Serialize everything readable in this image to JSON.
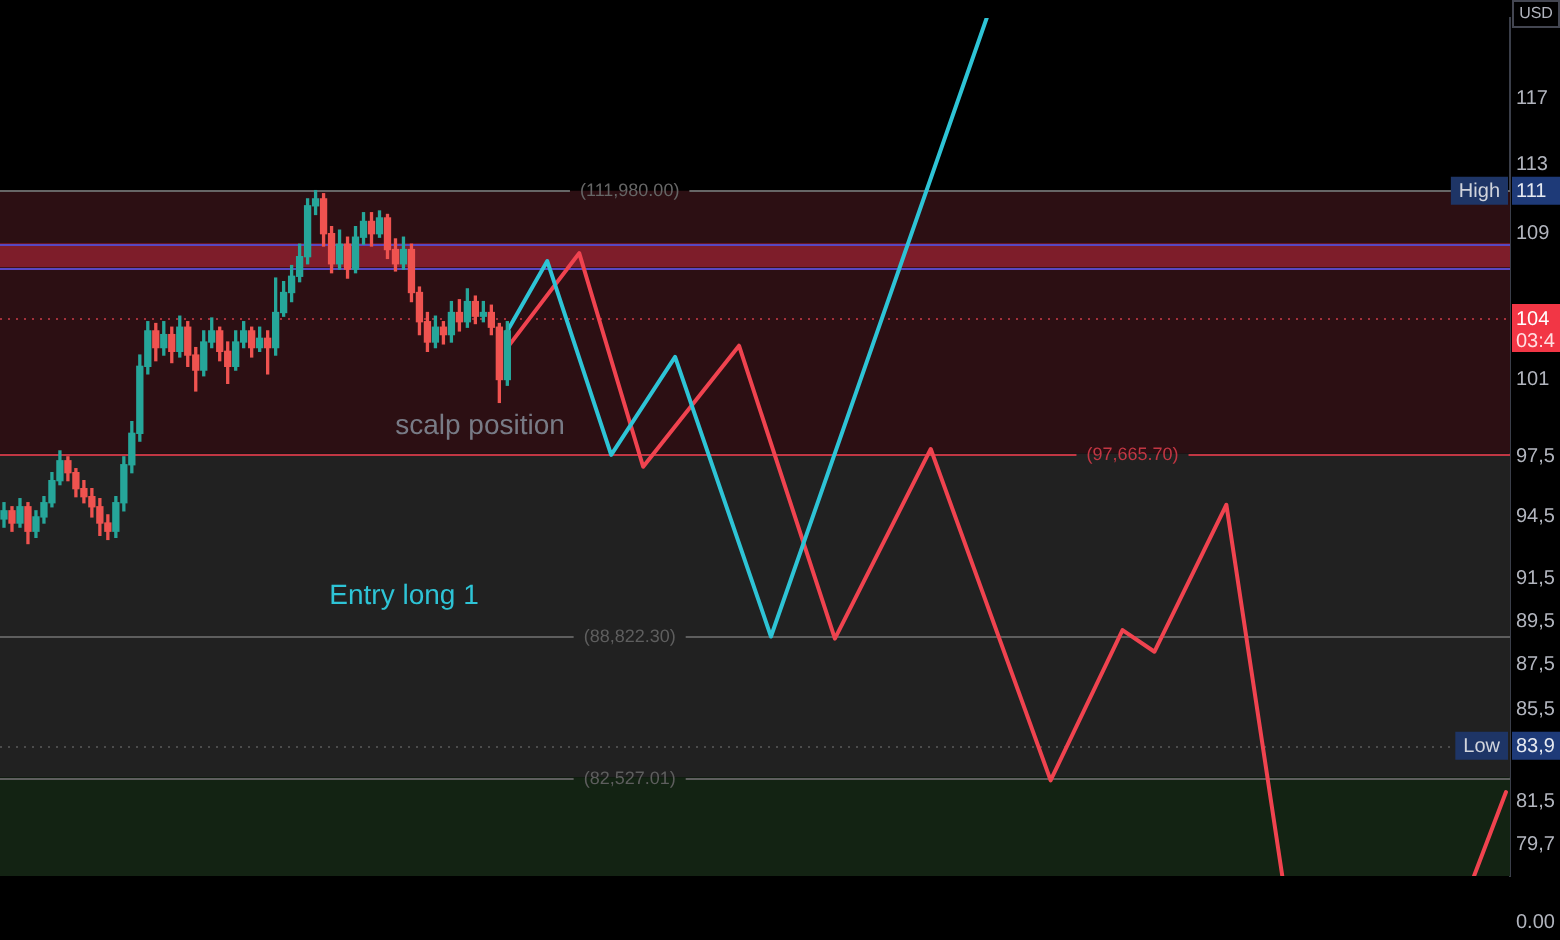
{
  "chart_data": {
    "type": "candlestick",
    "categories": [
      null,
      null,
      null,
      null,
      null,
      null,
      null,
      null,
      null,
      null,
      null,
      null,
      null,
      null,
      null,
      null,
      null,
      null,
      null,
      null,
      null,
      null,
      null,
      null,
      null,
      null,
      null,
      null,
      null,
      null,
      null,
      null,
      null,
      null,
      null,
      null,
      null,
      null,
      null,
      null,
      null,
      null,
      null,
      null,
      null,
      null,
      null,
      null,
      null,
      null,
      null,
      null,
      null,
      null,
      null,
      null,
      null,
      null,
      null,
      null,
      null,
      null,
      null,
      null,
      null,
      null,
      null,
      null,
      null,
      null,
      null,
      null,
      null,
      null,
      null,
      null,
      null,
      null,
      null,
      null,
      null,
      null,
      null,
      null,
      null,
      null,
      null,
      null,
      null,
      null,
      null,
      null,
      null,
      null,
      null,
      null,
      null,
      null,
      null,
      null,
      null,
      null,
      null,
      null,
      null,
      null,
      null,
      null,
      null,
      null,
      null,
      null,
      null,
      null,
      null,
      null,
      null,
      null,
      null,
      null,
      null,
      null,
      null,
      null,
      null,
      null,
      null,
      null,
      null,
      null,
      null,
      null,
      null,
      null,
      null,
      null,
      null,
      null,
      null,
      null,
      null,
      null,
      null,
      null,
      null,
      null,
      null,
      null,
      null,
      null,
      null,
      null,
      null,
      null,
      null,
      null,
      null,
      null,
      null,
      null,
      null,
      null,
      null,
      null,
      null,
      null,
      null,
      null,
      null,
      null,
      null,
      null,
      null,
      null,
      null,
      null,
      null,
      null,
      null,
      null,
      null,
      null,
      null,
      null,
      null,
      null,
      null,
      null,
      null
    ],
    "series": [
      {
        "ohlc": [
          [
            94.4,
            95.2,
            94,
            94.8
          ],
          [
            94.8,
            95,
            93.8,
            94.2
          ],
          [
            94.2,
            95.4,
            94,
            95
          ],
          [
            95,
            95.2,
            93.2,
            93.8
          ],
          [
            93.8,
            94.8,
            93.5,
            94.5
          ],
          [
            94.5,
            95.5,
            94.2,
            95.2
          ],
          [
            95.2,
            96.7,
            95,
            96.3
          ],
          [
            96.3,
            97.8,
            96.1,
            97.3
          ],
          [
            97.3,
            97.5,
            96.3,
            96.7
          ],
          [
            96.7,
            96.9,
            95.5,
            95.9
          ],
          [
            95.9,
            96.3,
            95.2,
            95.5
          ],
          [
            95.5,
            95.9,
            94.5,
            95
          ],
          [
            95,
            95.4,
            93.6,
            94.2
          ],
          [
            94.2,
            94.6,
            93.4,
            93.8
          ],
          [
            93.8,
            95.5,
            93.5,
            95.2
          ],
          [
            95.2,
            97.5,
            94.8,
            97.1
          ],
          [
            97.1,
            99.3,
            96.7,
            98.7
          ],
          [
            98.7,
            102.8,
            98.3,
            102.2
          ],
          [
            102.2,
            104.6,
            101.8,
            104.1
          ],
          [
            104.1,
            104.5,
            102.5,
            103.2
          ],
          [
            103.2,
            104.6,
            102.8,
            103.9
          ],
          [
            103.9,
            104.3,
            102.4,
            103
          ],
          [
            103,
            104.9,
            102.7,
            104.3
          ],
          [
            104.3,
            104.6,
            102.2,
            102.8
          ],
          [
            102.8,
            103.2,
            100.9,
            102
          ],
          [
            102,
            104.1,
            101.7,
            103.5
          ],
          [
            103.5,
            104.8,
            103.2,
            104.1
          ],
          [
            104.1,
            104.3,
            102.5,
            103
          ],
          [
            103,
            103.5,
            101.3,
            102.2
          ],
          [
            102.2,
            104.1,
            102,
            103.5
          ],
          [
            103.5,
            104.6,
            103.2,
            104.1
          ],
          [
            104.1,
            104.3,
            102.7,
            103.2
          ],
          [
            103.2,
            104.3,
            103,
            103.7
          ],
          [
            103.7,
            104.1,
            101.8,
            103.2
          ],
          [
            103.2,
            107,
            102.8,
            105.1
          ],
          [
            105.1,
            106.8,
            104.9,
            106.2
          ],
          [
            106.2,
            107.7,
            105.7,
            107.1
          ],
          [
            107.1,
            108.9,
            106.8,
            108.2
          ],
          [
            108.2,
            111.5,
            107.8,
            111.1
          ],
          [
            111.1,
            111.98,
            110.6,
            111.5
          ],
          [
            111.5,
            111.8,
            108.8,
            109.5
          ],
          [
            109.5,
            109.9,
            107.3,
            107.8
          ],
          [
            107.8,
            109.7,
            107.5,
            108.9
          ],
          [
            108.9,
            109.3,
            107,
            107.5
          ],
          [
            107.5,
            109.9,
            107.3,
            109.3
          ],
          [
            109.3,
            110.7,
            108.9,
            110.2
          ],
          [
            110.2,
            110.7,
            108.8,
            109.5
          ],
          [
            109.5,
            110.8,
            109.3,
            110.4
          ],
          [
            110.4,
            110.6,
            108.1,
            108.6
          ],
          [
            108.6,
            109.2,
            107.4,
            107.8
          ],
          [
            107.8,
            109.3,
            107.5,
            108.6
          ],
          [
            108.6,
            108.9,
            105.7,
            106.2
          ],
          [
            106.2,
            106.5,
            103.9,
            104.6
          ],
          [
            104.6,
            105.1,
            103,
            103.5
          ],
          [
            103.5,
            104.9,
            103.2,
            104.3
          ],
          [
            104.3,
            104.6,
            103.4,
            103.9
          ],
          [
            103.9,
            105.7,
            103.5,
            105.1
          ],
          [
            105.1,
            105.8,
            104.1,
            104.6
          ],
          [
            104.6,
            106.4,
            104.3,
            105.7
          ],
          [
            105.7,
            106,
            104.5,
            104.9
          ],
          [
            104.9,
            105.7,
            104.6,
            105.1
          ],
          [
            105.1,
            105.5,
            103.9,
            104.3
          ],
          [
            104.3,
            104.5,
            100.3,
            101.5
          ],
          [
            101.5,
            104.6,
            101.2,
            104.1
          ],
          null,
          null,
          null,
          null,
          null,
          null,
          null,
          null,
          null,
          null,
          null,
          null,
          null,
          null,
          null,
          null,
          null,
          null,
          null,
          null,
          null,
          null,
          null,
          null,
          null,
          null,
          null,
          null,
          null,
          null,
          null,
          null,
          null,
          null,
          null,
          null,
          null,
          null,
          null,
          null,
          null,
          null,
          null,
          null,
          null,
          null,
          null,
          null,
          null,
          null,
          null,
          null,
          null,
          null,
          null,
          null,
          null,
          null,
          null,
          null,
          null,
          null,
          null,
          null,
          null,
          null,
          null,
          null,
          null,
          null,
          null,
          null,
          null,
          null,
          null,
          null,
          null,
          null,
          null,
          null,
          null,
          null,
          null,
          null,
          null,
          null,
          null,
          null,
          null,
          null,
          null,
          null,
          null,
          null,
          null,
          null,
          null,
          null,
          null,
          null,
          null,
          null,
          null,
          null,
          null,
          null,
          null,
          null,
          null,
          null,
          null,
          null,
          null,
          null,
          null,
          null,
          null,
          null,
          null,
          null,
          null,
          null,
          null,
          null,
          null
        ],
        "colors": [
          "#26a69a",
          "#ef5350",
          "#26a69a",
          "#ef5350",
          "#26a69a",
          "#26a69a",
          "#26a69a",
          "#26a69a",
          "#ef5350",
          "#ef5350",
          "#ef5350",
          "#ef5350",
          "#ef5350",
          "#ef5350",
          "#26a69a",
          "#26a69a",
          "#26a69a",
          "#26a69a",
          "#26a69a",
          "#ef5350",
          "#26a69a",
          "#ef5350",
          "#26a69a",
          "#ef5350",
          "#ef5350",
          "#26a69a",
          "#26a69a",
          "#ef5350",
          "#ef5350",
          "#26a69a",
          "#26a69a",
          "#ef5350",
          "#26a69a",
          "#ef5350",
          "#26a69a",
          "#26a69a",
          "#26a69a",
          "#26a69a",
          "#26a69a",
          "#26a69a",
          "#ef5350",
          "#ef5350",
          "#26a69a",
          "#ef5350",
          "#26a69a",
          "#26a69a",
          "#ef5350",
          "#26a69a",
          "#ef5350",
          "#ef5350",
          "#26a69a",
          "#ef5350",
          "#ef5350",
          "#ef5350",
          "#26a69a",
          "#ef5350",
          "#26a69a",
          "#ef5350",
          "#26a69a",
          "#ef5350",
          "#26a69a",
          "#ef5350",
          "#ef5350",
          "#26a69a",
          null,
          null,
          null,
          null,
          null,
          null,
          null,
          null,
          null,
          null,
          null,
          null,
          null,
          null,
          null,
          null,
          null,
          null,
          null,
          null,
          null,
          null,
          null,
          null,
          null,
          null,
          null,
          null,
          null,
          null,
          null,
          null,
          null,
          null,
          null,
          null,
          null,
          null,
          null,
          null,
          null,
          null,
          null,
          null,
          null,
          null,
          null,
          null,
          null,
          null,
          null,
          null,
          null,
          null,
          null,
          null,
          null,
          null,
          null,
          null,
          null,
          null,
          null,
          null,
          null,
          null,
          null,
          null,
          null,
          null,
          null,
          null,
          null,
          null,
          null,
          null,
          null,
          null,
          null,
          null,
          null,
          null,
          null,
          null,
          null,
          null,
          null,
          null,
          null,
          null,
          null,
          null,
          null,
          null,
          null,
          null,
          null,
          null,
          null,
          null,
          null,
          null,
          null,
          null,
          null,
          null,
          null,
          null,
          null,
          null,
          null,
          null,
          null,
          null,
          null,
          null,
          null,
          null,
          null,
          null,
          null,
          null,
          null,
          null,
          null
        ]
      },
      {
        "type": "line",
        "color": "#2ec4d6",
        "values": [
          null,
          null,
          null,
          null,
          null,
          null,
          null,
          null,
          null,
          null,
          null,
          null,
          null,
          null,
          null,
          null,
          null,
          null,
          null,
          null,
          null,
          null,
          null,
          null,
          null,
          null,
          null,
          null,
          null,
          null,
          null,
          null,
          null,
          null,
          null,
          null,
          null,
          null,
          null,
          null,
          null,
          null,
          null,
          null,
          null,
          null,
          null,
          null,
          null,
          null,
          null,
          null,
          null,
          null,
          null,
          null,
          null,
          null,
          null,
          null,
          null,
          null,
          null,
          104.1,
          null,
          null,
          null,
          null,
          107.95,
          null,
          null,
          null,
          null,
          null,
          null,
          null,
          97.6,
          null,
          null,
          null,
          null,
          null,
          null,
          null,
          102.7,
          null,
          null,
          null,
          null,
          null,
          null,
          null,
          null,
          null,
          null,
          null,
          88.8,
          null,
          null,
          null,
          null,
          null,
          null,
          null,
          null,
          null,
          null,
          null,
          null,
          null,
          null,
          null,
          null,
          null,
          null,
          null,
          null,
          null,
          null,
          null,
          null,
          null,
          null,
          122.5,
          null,
          null,
          null,
          null,
          null,
          null,
          null,
          null,
          null,
          null,
          null,
          null,
          null,
          null,
          null,
          null,
          null,
          null,
          null,
          null,
          null,
          null,
          null,
          null,
          null,
          null,
          null,
          null,
          null,
          null,
          null,
          null,
          null,
          null,
          null,
          null,
          null,
          null,
          null,
          null,
          null,
          null,
          null,
          null,
          null,
          null,
          null,
          null,
          null,
          null,
          null,
          null,
          null,
          null,
          null,
          null,
          null,
          null,
          null,
          null,
          null,
          null,
          null,
          null,
          null
        ]
      },
      {
        "type": "line",
        "color": "#f0434f",
        "values": [
          null,
          null,
          null,
          null,
          null,
          null,
          null,
          null,
          null,
          null,
          null,
          null,
          null,
          null,
          null,
          null,
          null,
          null,
          null,
          null,
          null,
          null,
          null,
          null,
          null,
          null,
          null,
          null,
          null,
          null,
          null,
          null,
          null,
          null,
          null,
          null,
          null,
          null,
          null,
          null,
          null,
          null,
          null,
          null,
          null,
          null,
          null,
          null,
          null,
          null,
          null,
          null,
          null,
          null,
          null,
          null,
          null,
          null,
          null,
          null,
          null,
          null,
          null,
          103.2,
          null,
          null,
          null,
          null,
          null,
          null,
          null,
          null,
          108.4,
          null,
          null,
          null,
          null,
          null,
          null,
          null,
          97,
          null,
          null,
          null,
          null,
          null,
          null,
          null,
          null,
          null,
          null,
          null,
          103.3,
          null,
          null,
          null,
          null,
          null,
          null,
          null,
          null,
          null,
          null,
          null,
          88.7,
          null,
          null,
          null,
          null,
          null,
          null,
          null,
          null,
          null,
          null,
          null,
          97.9,
          null,
          null,
          null,
          null,
          null,
          null,
          null,
          null,
          null,
          null,
          null,
          null,
          null,
          null,
          82.4,
          null,
          null,
          null,
          null,
          null,
          null,
          null,
          null,
          89.1,
          null,
          null,
          null,
          88.1,
          null,
          null,
          null,
          null,
          null,
          null,
          null,
          null,
          95.1,
          null,
          null,
          null,
          null,
          null,
          null,
          78.4,
          null,
          null,
          null,
          null,
          null,
          null,
          null,
          null,
          null,
          null,
          null,
          null,
          null,
          null,
          null,
          null,
          null,
          null,
          null,
          null,
          null,
          null,
          null,
          null,
          null,
          null,
          null,
          null
        ]
      },
      {
        "type": "line",
        "color": "#f0434f",
        "values": [
          null,
          null,
          null,
          null,
          null,
          null,
          null,
          null,
          null,
          null,
          null,
          null,
          null,
          null,
          null,
          null,
          null,
          null,
          null,
          null,
          null,
          null,
          null,
          null,
          null,
          null,
          null,
          null,
          null,
          null,
          null,
          null,
          null,
          null,
          null,
          null,
          null,
          null,
          null,
          null,
          null,
          null,
          null,
          null,
          null,
          null,
          null,
          null,
          null,
          null,
          null,
          null,
          null,
          null,
          null,
          null,
          null,
          null,
          null,
          null,
          null,
          null,
          null,
          null,
          null,
          null,
          null,
          null,
          null,
          null,
          null,
          null,
          null,
          null,
          null,
          null,
          null,
          null,
          null,
          null,
          null,
          null,
          null,
          null,
          null,
          null,
          null,
          null,
          null,
          null,
          null,
          null,
          null,
          null,
          null,
          null,
          null,
          null,
          null,
          null,
          null,
          null,
          null,
          null,
          null,
          null,
          null,
          null,
          null,
          null,
          null,
          null,
          null,
          null,
          null,
          null,
          null,
          null,
          null,
          null,
          null,
          null,
          null,
          null,
          null,
          null,
          null,
          null,
          null,
          null,
          null,
          null,
          null,
          null,
          null,
          null,
          null,
          null,
          null,
          null,
          null,
          null,
          null,
          null,
          null,
          null,
          null,
          null,
          null,
          null,
          null,
          null,
          null,
          null,
          null,
          null,
          null,
          null,
          null,
          null,
          null,
          null,
          null,
          null,
          null,
          null,
          null,
          null,
          null,
          null,
          null,
          null,
          null,
          null,
          null,
          null,
          null,
          null,
          null,
          null,
          null,
          null,
          null,
          null,
          78.4,
          null,
          null,
          null,
          81.9
        ]
      }
    ],
    "ylim": [
      78.4,
      122.5
    ],
    "yticks": [
      {
        "value": 117.5,
        "label": "117"
      },
      {
        "value": 113.5,
        "label": "113"
      },
      {
        "value": 109.5,
        "label": "109"
      },
      {
        "value": 101.5,
        "label": "101"
      },
      {
        "value": 97.5,
        "label": "97,5"
      },
      {
        "value": 94.5,
        "label": "94,5"
      },
      {
        "value": 91.5,
        "label": "91,5"
      },
      {
        "value": 89.5,
        "label": "89,5"
      },
      {
        "value": 87.5,
        "label": "87,5"
      },
      {
        "value": 85.5,
        "label": "85,5"
      },
      {
        "value": 81.5,
        "label": "81,5"
      },
      {
        "value": 79.7,
        "label": "79,7"
      }
    ],
    "log": "y",
    "bands": [
      {
        "axis": "y",
        "from": 97.6657,
        "to": 111.98,
        "color": "#2c0f13"
      },
      {
        "axis": "y",
        "from": 82.52701,
        "to": 97.6657,
        "color": "#212121"
      },
      {
        "axis": "y",
        "from": 78.4,
        "to": 82.52701,
        "color": "#132313"
      },
      {
        "axis": "y",
        "from": 107.6,
        "to": 108.95,
        "color": "#7e1d2a"
      }
    ],
    "ref_lines": [
      {
        "axis": "y",
        "value": 111.98,
        "label": "(111,980.00)",
        "color": "#666666"
      },
      {
        "axis": "y",
        "value": 97.6657,
        "label": "(97,665.70)",
        "color": "#c23643"
      },
      {
        "axis": "y",
        "value": 88.8223,
        "label": "(88,822.30)",
        "color": "#5e5e5e"
      },
      {
        "axis": "y",
        "value": 82.52701,
        "label": "(82,527.01)",
        "color": "#5e5e5e"
      },
      {
        "axis": "y",
        "value": 104.8,
        "color": "#a3303a",
        "line_style": "dotted"
      },
      {
        "axis": "y",
        "value": 83.9,
        "color": "#4c4c4c",
        "line_style": "dotted"
      },
      {
        "axis": "y",
        "value": 108.95,
        "color": "#5848c2"
      },
      {
        "axis": "y",
        "value": 107.6,
        "color": "#5848c2"
      }
    ],
    "annotations": [
      "scalp position",
      "Entry long 1",
      "High",
      "111",
      "Low",
      "83,9",
      "104",
      "03:4",
      "USD",
      "0.00"
    ]
  }
}
